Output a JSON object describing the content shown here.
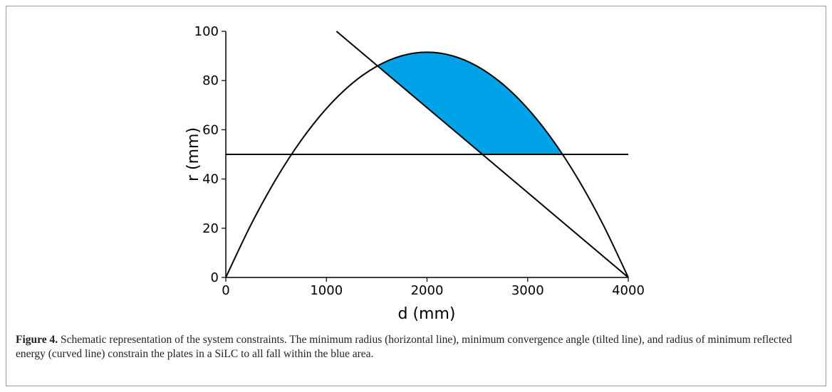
{
  "chart_data": {
    "type": "line",
    "xlabel": "d (mm)",
    "ylabel": "r (mm)",
    "xlim": [
      0,
      4000
    ],
    "ylim": [
      0,
      100
    ],
    "xticks": [
      0,
      1000,
      2000,
      3000,
      4000
    ],
    "yticks": [
      0,
      20,
      40,
      60,
      80,
      100
    ],
    "series": [
      {
        "color": "#000000",
        "x": [
          0,
          250,
          500,
          750,
          1000,
          1250,
          1500,
          1750,
          2000,
          2250,
          2500,
          2750,
          3000,
          3250,
          3500,
          3750,
          4000
        ],
        "values": [
          0,
          21.45,
          40.03,
          55.76,
          68.63,
          78.63,
          85.78,
          90.07,
          91.5,
          90.07,
          85.78,
          78.63,
          68.63,
          55.76,
          40.03,
          21.45,
          0
        ]
      },
      {
        "color": "#000000",
        "x": [
          1100,
          4000
        ],
        "values": [
          100,
          0
        ]
      },
      {
        "color": "#000000",
        "x": [
          0,
          4000
        ],
        "values": [
          50,
          50
        ]
      }
    ],
    "fill_color": "#00a3e8"
  },
  "caption": {
    "label": "Figure 4.",
    "text": "Schematic representation of the system constraints. The minimum radius (horizontal line), minimum convergence angle (tilted line), and radius of minimum reflected energy (curved line) constrain the plates in a SiLC to all fall within the blue area."
  }
}
